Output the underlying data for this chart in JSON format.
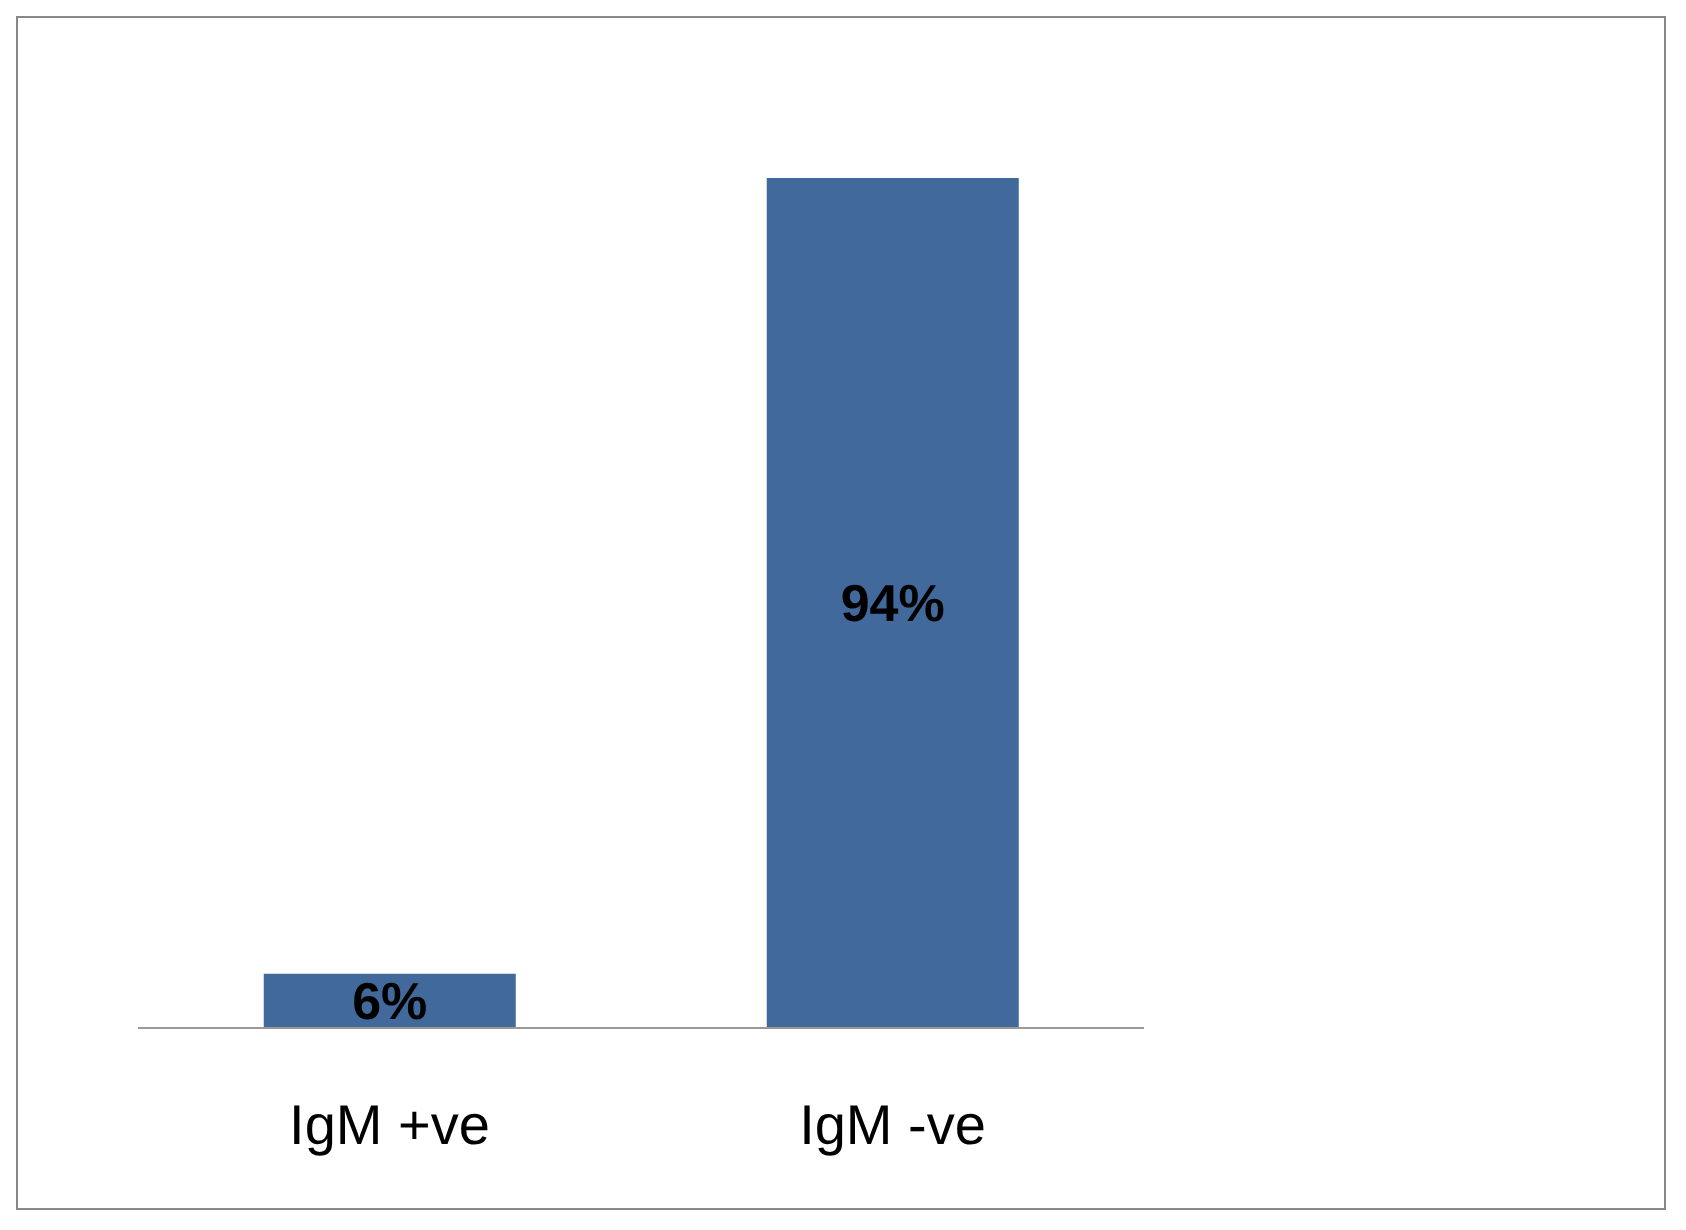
{
  "chart_data": {
    "type": "bar",
    "categories": [
      "IgM +ve",
      "IgM -ve"
    ],
    "values": [
      6,
      94
    ],
    "color": "#41699c",
    "data_labels": true,
    "value_labels": [
      "6%",
      "94%"
    ]
  }
}
